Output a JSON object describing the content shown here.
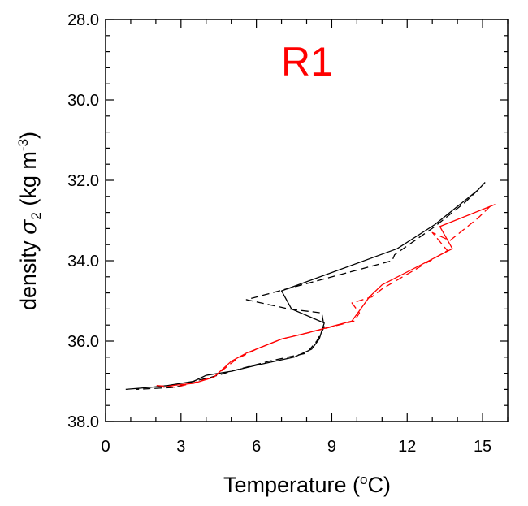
{
  "chart_data": {
    "type": "line",
    "title": "R1",
    "title_color": "#ff0000",
    "xlabel": "Temperature (",
    "xlabel_sup": "o",
    "xlabel_tail": "C)",
    "ylabel": "density ",
    "ylabel_symbol": "σ",
    "ylabel_sub": "2",
    "ylabel_unit": " (kg m",
    "ylabel_unit_sup": "-3",
    "ylabel_unit_tail": ")",
    "xlim": [
      0,
      16
    ],
    "ylim": [
      28,
      38
    ],
    "y_inverted": true,
    "x_ticks": [
      0,
      3,
      6,
      9,
      12,
      15
    ],
    "x_tick_labels": [
      "0",
      "3",
      "6",
      "9",
      "12",
      "15"
    ],
    "y_ticks": [
      28,
      30,
      32,
      34,
      36,
      38
    ],
    "y_tick_labels": [
      "28.0",
      "30.0",
      "32.0",
      "34.0",
      "36.0",
      "38.0"
    ],
    "grid": false,
    "series": [
      {
        "color": "#000000",
        "dash": "solid",
        "points": [
          [
            15.1,
            32.05
          ],
          [
            14.8,
            32.25
          ],
          [
            14.2,
            32.55
          ],
          [
            13.1,
            33.1
          ],
          [
            11.6,
            33.7
          ],
          [
            7.0,
            34.75
          ],
          [
            7.4,
            35.2
          ],
          [
            8.7,
            35.55
          ],
          [
            8.5,
            35.95
          ],
          [
            8.2,
            36.2
          ],
          [
            7.5,
            36.4
          ],
          [
            6.0,
            36.6
          ],
          [
            5.0,
            36.75
          ],
          [
            4.0,
            36.85
          ],
          [
            3.5,
            37.0
          ],
          [
            2.5,
            37.1
          ],
          [
            1.8,
            37.15
          ],
          [
            0.8,
            37.2
          ]
        ]
      },
      {
        "color": "#000000",
        "dash": "dashed",
        "points": [
          [
            14.8,
            32.25
          ],
          [
            14.3,
            32.55
          ],
          [
            13.1,
            33.15
          ],
          [
            11.5,
            33.85
          ],
          [
            11.4,
            34.0
          ],
          [
            5.6,
            34.97
          ],
          [
            7.3,
            35.2
          ],
          [
            8.6,
            35.3
          ],
          [
            8.7,
            35.65
          ],
          [
            8.4,
            36.0
          ],
          [
            8.0,
            36.3
          ],
          [
            6.5,
            36.5
          ],
          [
            5.0,
            36.75
          ],
          [
            4.2,
            36.9
          ],
          [
            3.5,
            37.0
          ],
          [
            2.8,
            37.15
          ],
          [
            1.2,
            37.2
          ]
        ]
      },
      {
        "color": "#ff0000",
        "dash": "solid",
        "points": [
          [
            15.5,
            32.6
          ],
          [
            13.3,
            33.15
          ],
          [
            13.8,
            33.7
          ],
          [
            11.0,
            34.6
          ],
          [
            10.5,
            34.9
          ],
          [
            9.8,
            35.5
          ],
          [
            8.0,
            35.8
          ],
          [
            7.0,
            35.95
          ],
          [
            6.2,
            36.15
          ],
          [
            5.6,
            36.3
          ],
          [
            5.0,
            36.5
          ],
          [
            4.3,
            36.9
          ],
          [
            3.5,
            37.05
          ],
          [
            2.7,
            37.1
          ],
          [
            2.3,
            37.15
          ]
        ]
      },
      {
        "color": "#ff0000",
        "dash": "dashed",
        "points": [
          [
            15.3,
            32.65
          ],
          [
            14.8,
            32.95
          ],
          [
            13.7,
            33.5
          ],
          [
            13.0,
            33.3
          ],
          [
            13.6,
            33.75
          ],
          [
            11.0,
            34.7
          ],
          [
            10.6,
            34.9
          ],
          [
            9.8,
            35.05
          ],
          [
            10.1,
            35.3
          ],
          [
            9.9,
            35.5
          ],
          [
            8.0,
            35.8
          ],
          [
            7.0,
            35.95
          ],
          [
            6.0,
            36.2
          ],
          [
            5.2,
            36.45
          ],
          [
            4.3,
            36.9
          ],
          [
            3.4,
            37.05
          ],
          [
            2.8,
            37.15
          ],
          [
            2.0,
            37.1
          ]
        ]
      }
    ]
  }
}
